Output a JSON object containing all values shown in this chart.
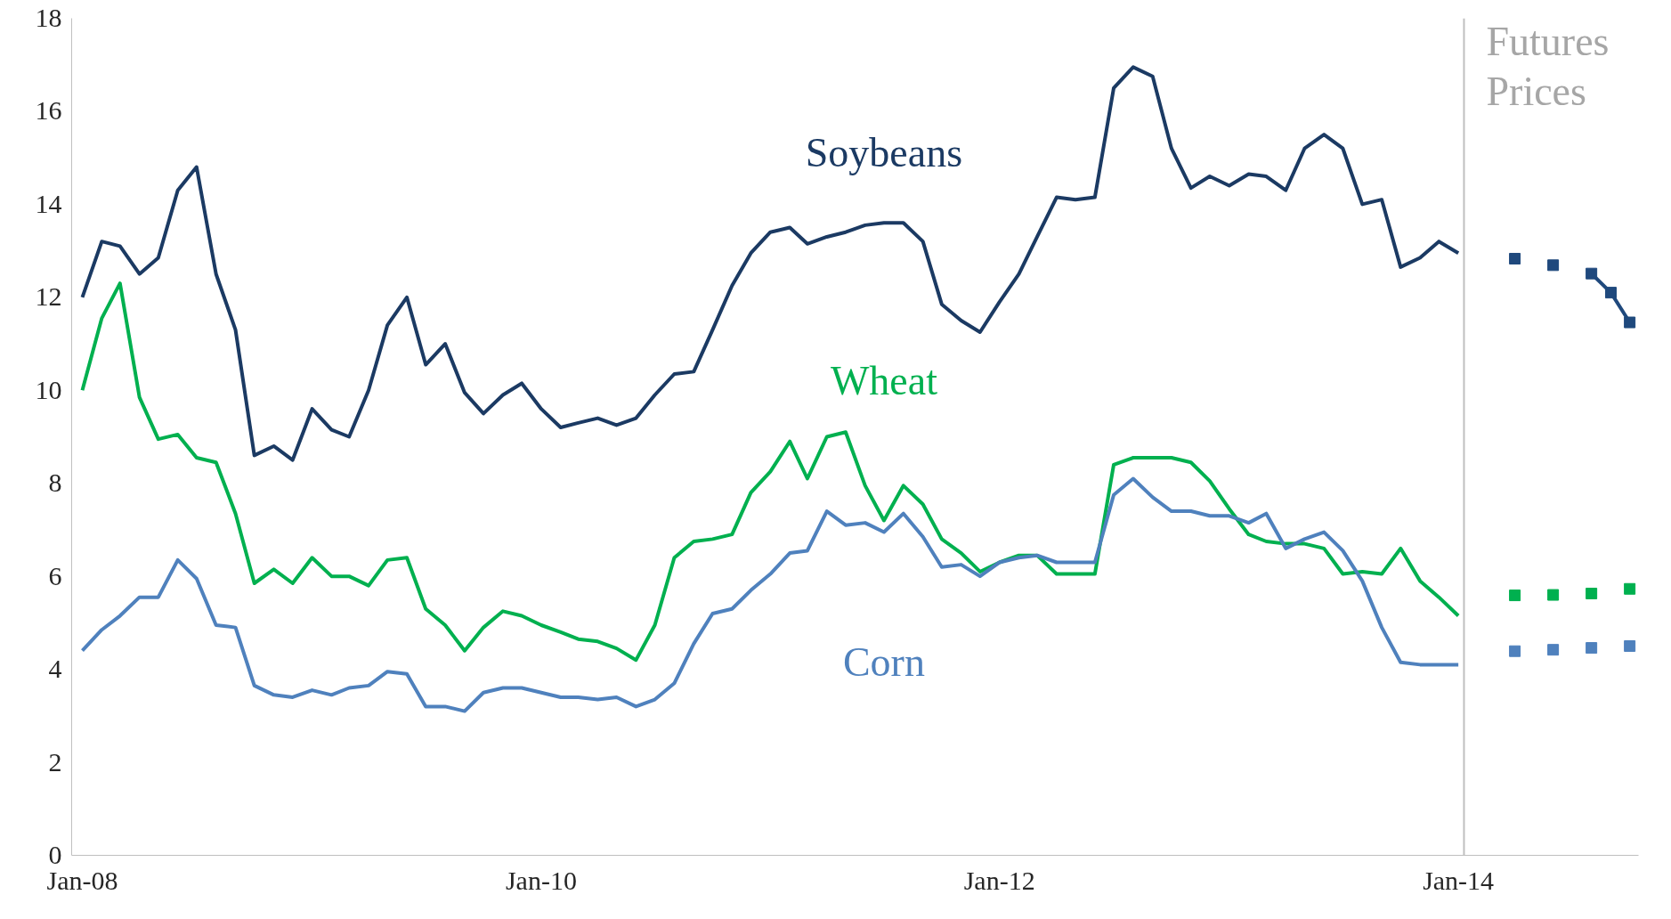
{
  "chart_data": {
    "type": "line",
    "xlim": [
      "2007-12-15",
      "2014-10-15"
    ],
    "xticks": [
      {
        "value": "2008-01",
        "label": "Jan-08"
      },
      {
        "value": "2010-01",
        "label": "Jan-10"
      },
      {
        "value": "2012-01",
        "label": "Jan-12"
      },
      {
        "value": "2014-01",
        "label": "Jan-14"
      }
    ],
    "ylim": [
      0,
      18
    ],
    "yticks": [
      0,
      2,
      4,
      6,
      8,
      10,
      12,
      14,
      16,
      18
    ],
    "x": [
      "2008-01",
      "2008-02",
      "2008-03",
      "2008-04",
      "2008-05",
      "2008-06",
      "2008-07",
      "2008-08",
      "2008-09",
      "2008-10",
      "2008-11",
      "2008-12",
      "2009-01",
      "2009-02",
      "2009-03",
      "2009-04",
      "2009-05",
      "2009-06",
      "2009-07",
      "2009-08",
      "2009-09",
      "2009-10",
      "2009-11",
      "2009-12",
      "2010-01",
      "2010-02",
      "2010-03",
      "2010-04",
      "2010-05",
      "2010-06",
      "2010-07",
      "2010-08",
      "2010-09",
      "2010-10",
      "2010-11",
      "2010-12",
      "2011-01",
      "2011-02",
      "2011-03",
      "2011-04",
      "2011-05",
      "2011-06",
      "2011-07",
      "2011-08",
      "2011-09",
      "2011-10",
      "2011-11",
      "2011-12",
      "2012-01",
      "2012-02",
      "2012-03",
      "2012-04",
      "2012-05",
      "2012-06",
      "2012-07",
      "2012-08",
      "2012-09",
      "2012-10",
      "2012-11",
      "2012-12",
      "2013-01",
      "2013-02",
      "2013-03",
      "2013-04",
      "2013-05",
      "2013-06",
      "2013-07",
      "2013-08",
      "2013-09",
      "2013-10",
      "2013-11",
      "2013-12",
      "2014-01"
    ],
    "grid": false,
    "marker": "none",
    "line_style": "solid",
    "ref_lines": [
      {
        "axis": "x",
        "value": "2014-01-10",
        "label": "Futures Prices",
        "color": "#bfbfbf"
      }
    ],
    "series": [
      {
        "name": "Soybeans",
        "color": "#1b3a63",
        "values": [
          12.0,
          13.2,
          13.1,
          12.5,
          12.85,
          14.3,
          14.8,
          12.5,
          11.3,
          8.6,
          8.8,
          8.5,
          9.6,
          9.15,
          9.0,
          10.0,
          11.4,
          12.0,
          10.55,
          11.0,
          9.95,
          9.5,
          9.9,
          10.15,
          9.6,
          9.2,
          9.3,
          9.4,
          9.25,
          9.4,
          9.9,
          10.35,
          10.4,
          11.3,
          12.25,
          12.95,
          13.4,
          13.5,
          13.15,
          13.3,
          13.4,
          13.55,
          13.6,
          13.6,
          13.2,
          11.85,
          11.5,
          11.25,
          11.9,
          12.5,
          13.3,
          14.15,
          14.1,
          14.15,
          16.5,
          16.95,
          16.75,
          15.2,
          14.35,
          14.6,
          14.4,
          14.65,
          14.6,
          14.3,
          15.2,
          15.5,
          15.2,
          14.0,
          14.1,
          12.65,
          12.85,
          13.2,
          12.95
        ]
      },
      {
        "name": "Wheat",
        "color": "#00b04f",
        "values": [
          10.0,
          11.55,
          12.3,
          9.85,
          8.95,
          9.05,
          8.55,
          8.45,
          7.35,
          5.85,
          6.15,
          5.85,
          6.4,
          6.0,
          6.0,
          5.8,
          6.35,
          6.4,
          5.3,
          4.95,
          4.4,
          4.9,
          5.25,
          5.15,
          4.95,
          4.8,
          4.65,
          4.6,
          4.45,
          4.2,
          4.95,
          6.4,
          6.75,
          6.8,
          6.9,
          7.8,
          8.25,
          8.9,
          8.1,
          9.0,
          9.1,
          7.95,
          7.2,
          7.95,
          7.55,
          6.8,
          6.5,
          6.1,
          6.3,
          6.45,
          6.45,
          6.05,
          6.05,
          6.05,
          8.4,
          8.55,
          8.55,
          8.55,
          8.45,
          8.05,
          7.45,
          6.9,
          6.75,
          6.7,
          6.7,
          6.6,
          6.05,
          6.1,
          6.05,
          6.6,
          5.9,
          5.55,
          5.15
        ]
      },
      {
        "name": "Corn",
        "color": "#4f81bd",
        "values": [
          4.4,
          4.85,
          5.15,
          5.55,
          5.55,
          6.35,
          5.95,
          4.95,
          4.9,
          3.65,
          3.45,
          3.4,
          3.55,
          3.45,
          3.6,
          3.65,
          3.95,
          3.9,
          3.2,
          3.2,
          3.1,
          3.5,
          3.6,
          3.6,
          3.5,
          3.4,
          3.4,
          3.35,
          3.4,
          3.2,
          3.35,
          3.7,
          4.55,
          5.2,
          5.3,
          5.7,
          6.05,
          6.5,
          6.55,
          7.4,
          7.1,
          7.15,
          6.95,
          7.35,
          6.85,
          6.2,
          6.25,
          6.0,
          6.3,
          6.4,
          6.45,
          6.3,
          6.3,
          6.3,
          7.75,
          8.1,
          7.7,
          7.4,
          7.4,
          7.3,
          7.3,
          7.15,
          7.35,
          6.6,
          6.8,
          6.95,
          6.55,
          5.9,
          4.9,
          4.15,
          4.1,
          4.1,
          4.1
        ]
      },
      {
        "type": "scatter",
        "marker": "square",
        "color": "#1f497d",
        "x": [
          "2014-04",
          "2014-06"
        ],
        "values": [
          12.83,
          12.69
        ]
      },
      {
        "type": "line",
        "marker": "square",
        "color": "#1f497d",
        "x": [
          "2014-08",
          "2014-09",
          "2014-10"
        ],
        "values": [
          12.51,
          12.1,
          11.46
        ]
      },
      {
        "type": "scatter",
        "marker": "square",
        "color": "#00b04f",
        "x": [
          "2014-04",
          "2014-06",
          "2014-08",
          "2014-10"
        ],
        "values": [
          5.59,
          5.6,
          5.63,
          5.73
        ]
      },
      {
        "type": "scatter",
        "marker": "square",
        "color": "#4f81bd",
        "x": [
          "2014-04",
          "2014-06",
          "2014-08",
          "2014-10"
        ],
        "values": [
          4.39,
          4.42,
          4.46,
          4.5
        ]
      }
    ]
  }
}
